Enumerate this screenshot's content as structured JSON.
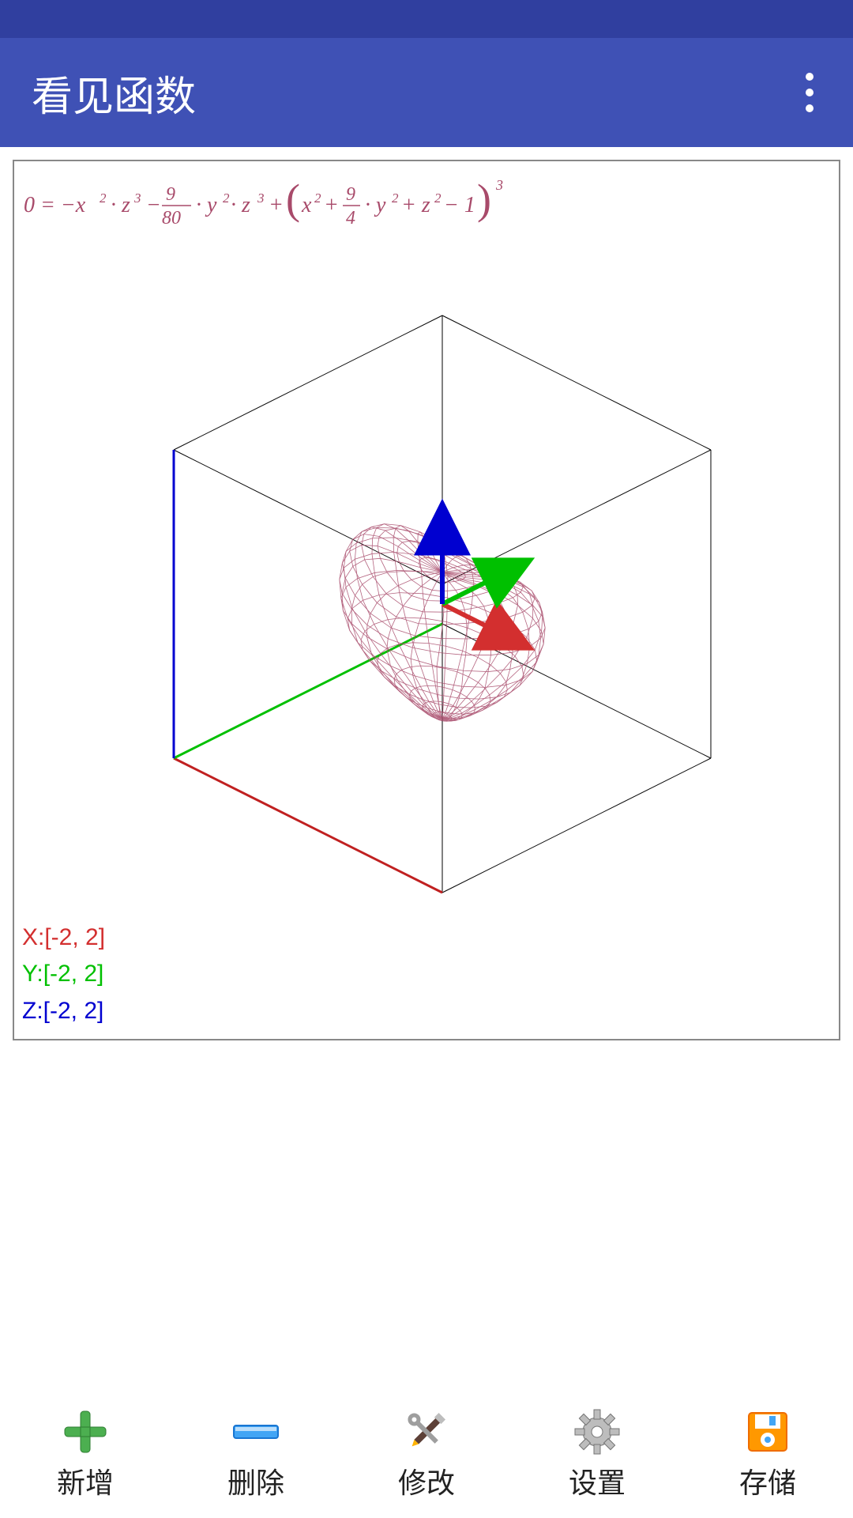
{
  "app": {
    "title": "看见函数",
    "status_bar_color": "#303f9f",
    "app_bar_color": "#3f51b5",
    "title_color": "#ffffff"
  },
  "formula": {
    "raw": "0 = -x^2·z^3 - (9/80)·y^2·z^3 + (x^2 + (9/4)·y^2 + z^2 - 1)^3",
    "color": "#a84a6a",
    "fontsize": 32
  },
  "plot": {
    "type": "implicit_surface_3d",
    "surface_name": "heart",
    "wireframe_color": "#a84a6a",
    "wireframe_width": 1,
    "box_color": "#000000",
    "box_width": 1,
    "background": "#ffffff",
    "axes": [
      {
        "name": "X",
        "range": [
          -2,
          2
        ],
        "color": "#d32f2f",
        "label": "X:[-2, 2]"
      },
      {
        "name": "Y",
        "range": [
          -2,
          2
        ],
        "color": "#00c000",
        "label": "Y:[-2, 2]"
      },
      {
        "name": "Z",
        "range": [
          -2,
          2
        ],
        "color": "#0000d0",
        "label": "Z:[-2, 2]"
      }
    ],
    "axis_arrow_width": 6,
    "box_edges_color_bottom_front": "#c02020",
    "box_edges_color_left_vert": "#0000d0",
    "box_edges_color_left_diag": "#00c000"
  },
  "toolbar": {
    "items": [
      {
        "key": "add",
        "label": "新增",
        "icon": "plus-icon",
        "icon_color": "#4caf50"
      },
      {
        "key": "delete",
        "label": "删除",
        "icon": "minus-icon",
        "icon_color": "#2196f3"
      },
      {
        "key": "edit",
        "label": "修改",
        "icon": "tools-icon",
        "icon_color": "#607d8b"
      },
      {
        "key": "settings",
        "label": "设置",
        "icon": "gear-icon",
        "icon_color": "#9e9e9e"
      },
      {
        "key": "save",
        "label": "存储",
        "icon": "save-icon",
        "icon_color": "#ff9800"
      }
    ],
    "label_fontsize": 36,
    "label_color": "#222222"
  }
}
